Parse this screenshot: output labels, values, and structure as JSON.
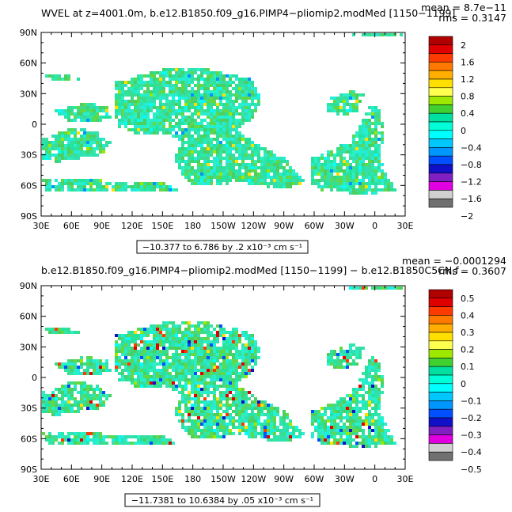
{
  "panels": [
    {
      "id": "top",
      "title": "WVEL at z=4001.0m, b.e12.B1850.f09_g16.PIMP4−pliomip2.modMed [1150−1199]",
      "stat_mean": "mean = 8.7e−11",
      "stat_rms": "rms = 0.3147",
      "range_label": "−10.377 to 6.786 by .2 x10⁻³ cm s⁻¹",
      "colorbar_labels": [
        "2",
        "1.6",
        "1.2",
        "0.8",
        "0.4",
        "0",
        "−0.4",
        "−0.8",
        "−1.2",
        "−1.6",
        "−2"
      ]
    },
    {
      "id": "bottom",
      "title": "b.e12.B1850.f09_g16.PIMP4−pliomip2.modMed [1150−1199] − b.e12.B1850C5CN.f",
      "stat_mean": "mean = −0.0001294",
      "stat_rms": "rms = 0.3607",
      "range_label": "−11.7381 to 10.6384 by .05 x10⁻³ cm s⁻¹",
      "colorbar_labels": [
        "0.5",
        "0.4",
        "0.3",
        "0.2",
        "0.1",
        "0",
        "−0.1",
        "−0.2",
        "−0.3",
        "−0.4",
        "−0.5"
      ]
    }
  ],
  "lat_labels": [
    "90N",
    "60N",
    "30N",
    "0",
    "30S",
    "60S",
    "90S"
  ],
  "lon_labels": [
    "30E",
    "60E",
    "90E",
    "120E",
    "150E",
    "180",
    "150W",
    "120W",
    "90W",
    "60W",
    "30W",
    "0",
    "30E"
  ],
  "colors": {
    "colorbar": [
      "#b00000",
      "#e10000",
      "#ff3a00",
      "#ff7800",
      "#ffae00",
      "#ffdf00",
      "#ffff50",
      "#9ee800",
      "#40d030",
      "#00e0a0",
      "#00ffd8",
      "#00ffff",
      "#00c8ff",
      "#0096ff",
      "#0050ff",
      "#1010c8",
      "#8020c0",
      "#e000e0",
      "#d0d0d0",
      "#707070"
    ],
    "ocean_base": "#2ee8a8"
  }
}
